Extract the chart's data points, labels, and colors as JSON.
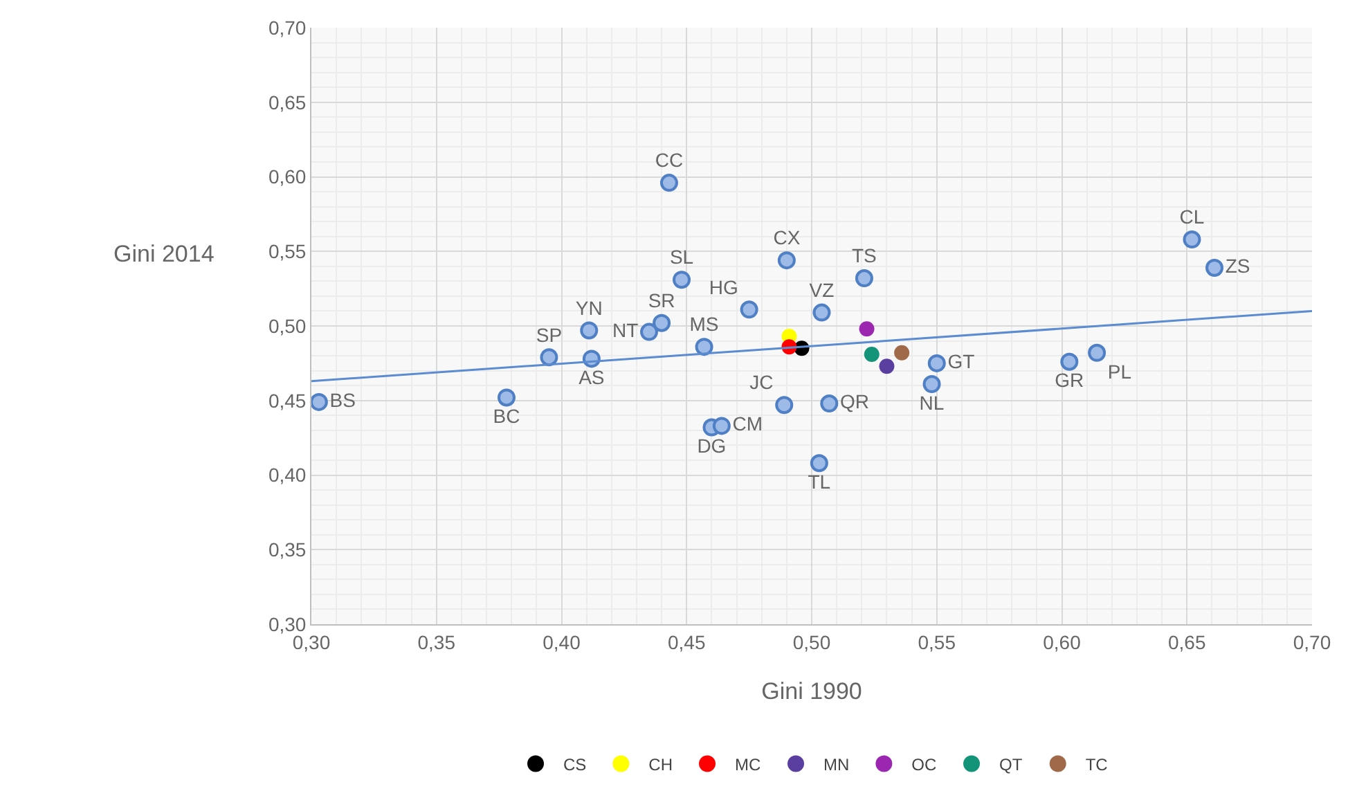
{
  "chart_data": {
    "type": "scatter",
    "xlabel": "Gini 1990",
    "ylabel": "Gini 2014",
    "xlim": [
      0.3,
      0.7
    ],
    "ylim": [
      0.3,
      0.7
    ],
    "xticks": [
      {
        "value": 0.3,
        "label": "0,30"
      },
      {
        "value": 0.35,
        "label": "0,35"
      },
      {
        "value": 0.4,
        "label": "0,40"
      },
      {
        "value": 0.45,
        "label": "0,45"
      },
      {
        "value": 0.5,
        "label": "0,50"
      },
      {
        "value": 0.55,
        "label": "0,55"
      },
      {
        "value": 0.6,
        "label": "0,60"
      },
      {
        "value": 0.65,
        "label": "0,65"
      },
      {
        "value": 0.7,
        "label": "0,70"
      }
    ],
    "yticks": [
      {
        "value": 0.3,
        "label": "0,30"
      },
      {
        "value": 0.35,
        "label": "0,35"
      },
      {
        "value": 0.4,
        "label": "0,40"
      },
      {
        "value": 0.45,
        "label": "0,45"
      },
      {
        "value": 0.5,
        "label": "0,50"
      },
      {
        "value": 0.55,
        "label": "0,55"
      },
      {
        "value": 0.6,
        "label": "0,60"
      },
      {
        "value": 0.65,
        "label": "0,65"
      },
      {
        "value": 0.7,
        "label": "0,70"
      }
    ],
    "grid": true,
    "legend": "bottom",
    "marker": "circle",
    "series": [
      {
        "color": "#9dbbe6",
        "x": [
          0.303,
          0.378,
          0.395,
          0.411,
          0.412,
          0.435,
          0.44,
          0.448,
          0.443,
          0.457,
          0.475,
          0.49,
          0.504,
          0.521,
          0.55,
          0.548,
          0.489,
          0.507,
          0.46,
          0.464,
          0.503,
          0.603,
          0.614,
          0.652,
          0.661
        ],
        "values": [
          0.449,
          0.452,
          0.479,
          0.497,
          0.478,
          0.496,
          0.502,
          0.531,
          0.596,
          0.486,
          0.511,
          0.544,
          0.509,
          0.532,
          0.475,
          0.461,
          0.447,
          0.448,
          0.432,
          0.433,
          0.408,
          0.476,
          0.482,
          0.558,
          0.539
        ],
        "value_labels": [
          "BS",
          "BC",
          "SP",
          "YN",
          "AS",
          "NT",
          "SR",
          "SL",
          "CC",
          "MS",
          "HG",
          "CX",
          "VZ",
          "TS",
          "GT",
          "NL",
          "JC",
          "QR",
          "DG",
          "CM",
          "TL",
          "GR",
          "PL",
          "CL",
          "ZS"
        ]
      },
      {
        "name": "CS",
        "color": "#000000",
        "x": [
          0.496
        ],
        "values": [
          0.485
        ]
      },
      {
        "name": "CH",
        "color": "#ffff00",
        "x": [
          0.491
        ],
        "values": [
          0.493
        ]
      },
      {
        "name": "MC",
        "color": "#ff0000",
        "x": [
          0.491
        ],
        "values": [
          0.486
        ]
      },
      {
        "name": "MN",
        "color": "#5a3fa0",
        "x": [
          0.53
        ],
        "values": [
          0.473
        ]
      },
      {
        "name": "OC",
        "color": "#9b27b0",
        "x": [
          0.522
        ],
        "values": [
          0.498
        ]
      },
      {
        "name": "QT",
        "color": "#139479",
        "x": [
          0.524
        ],
        "values": [
          0.481
        ]
      },
      {
        "name": "TC",
        "color": "#a06a4a",
        "x": [
          0.536
        ],
        "values": [
          0.482
        ]
      },
      {
        "type": "line",
        "color": "#5b8bd0",
        "x": [
          0.3,
          0.7
        ],
        "values": [
          0.463,
          0.51
        ],
        "marker": "none",
        "line_style": "solid"
      }
    ]
  }
}
